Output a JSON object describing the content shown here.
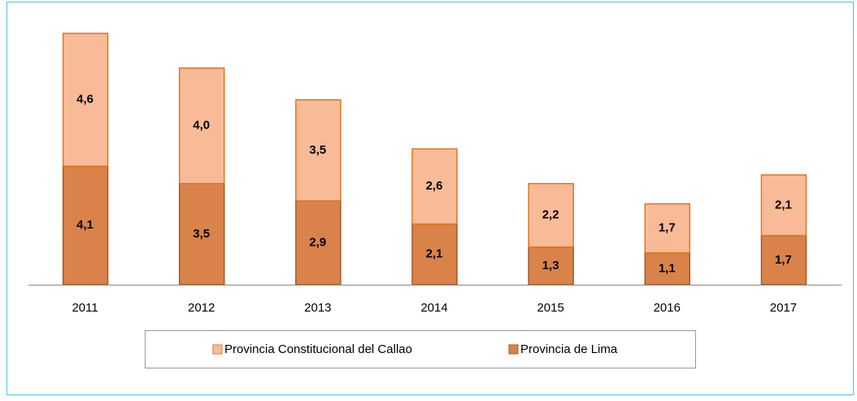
{
  "chart_data": {
    "type": "stacked-bar",
    "categories": [
      "2011",
      "2012",
      "2013",
      "2014",
      "2015",
      "2016",
      "2017"
    ],
    "series": [
      {
        "name": "Provincia de Lima",
        "color": "#d9834b",
        "values": [
          4.1,
          3.5,
          2.9,
          2.1,
          1.3,
          1.1,
          1.7
        ],
        "value_labels": [
          "4,1",
          "3,5",
          "2,9",
          "2,1",
          "1,3",
          "1,1",
          "1,7"
        ]
      },
      {
        "name": "Provincia Constitucional del Callao",
        "color": "#f9bb97",
        "values": [
          4.6,
          4.0,
          3.5,
          2.6,
          2.2,
          1.7,
          2.1
        ],
        "value_labels": [
          "4,6",
          "4,0",
          "3,5",
          "2,6",
          "2,2",
          "1,7",
          "2,1"
        ]
      }
    ]
  }
}
